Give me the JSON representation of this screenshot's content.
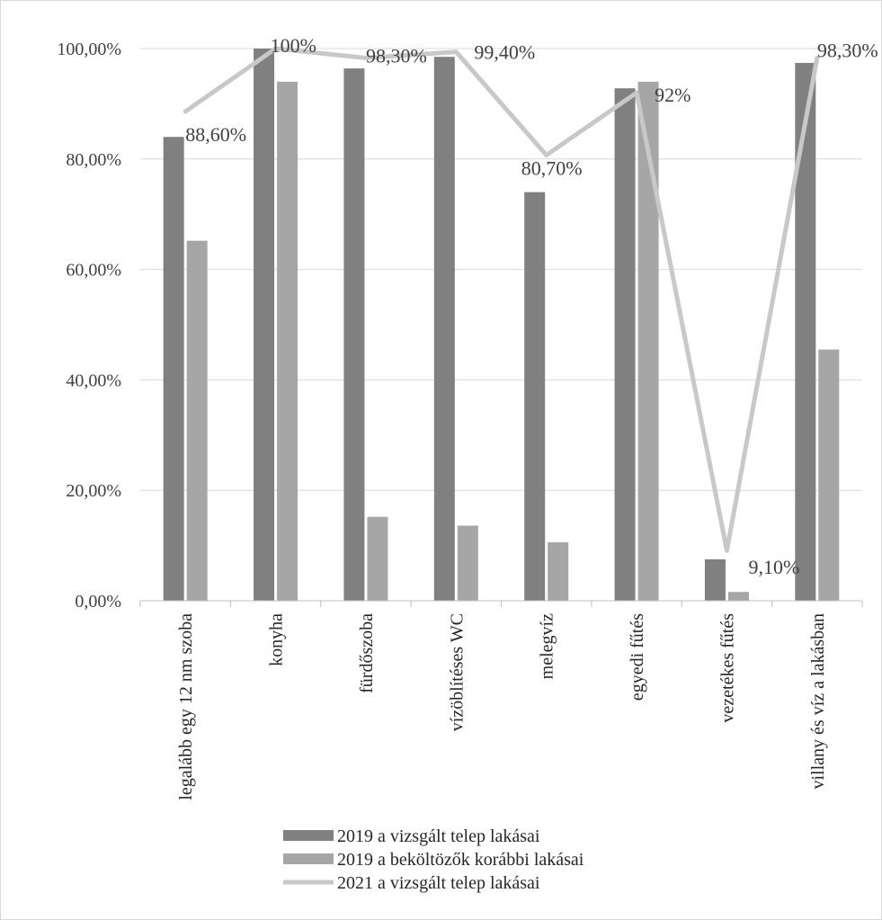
{
  "chart_data": {
    "type": "bar",
    "categories": [
      "legalább egy 12 nm szoba",
      "konyha",
      "fürdőszoba",
      "vízöblítéses WC",
      "melegvíz",
      "egyedi fűtés",
      "vezetékes fűtés",
      "villany és víz a lakásban"
    ],
    "series": [
      {
        "name": "2019 a vizsgált telep lakásai",
        "kind": "bar",
        "color": "#808080",
        "values": [
          84.0,
          100.0,
          96.4,
          98.5,
          74.0,
          92.8,
          7.5,
          97.4
        ]
      },
      {
        "name": "2019 a beköltözők korábbi lakásai",
        "kind": "bar",
        "color": "#a6a6a6",
        "values": [
          65.2,
          94.0,
          15.2,
          13.6,
          10.6,
          94.0,
          1.6,
          45.5
        ]
      },
      {
        "name": "2021 a vizsgált telep lakásai",
        "kind": "line",
        "color": "#c8c8c8",
        "values": [
          88.6,
          100.0,
          98.3,
          99.4,
          80.7,
          92.0,
          9.1,
          98.3
        ],
        "labels": [
          "88,60%",
          "100%",
          "98,30%",
          "99,40%",
          "80,70%",
          "92%",
          "9,10%",
          "98,30%"
        ]
      }
    ],
    "y_ticks": [
      "0,00%",
      "20,00%",
      "40,00%",
      "60,00%",
      "80,00%",
      "100,00%"
    ],
    "ylim": [
      0,
      100
    ],
    "grid": true,
    "legend": "bottom",
    "title": "",
    "xlabel": "",
    "ylabel": ""
  }
}
